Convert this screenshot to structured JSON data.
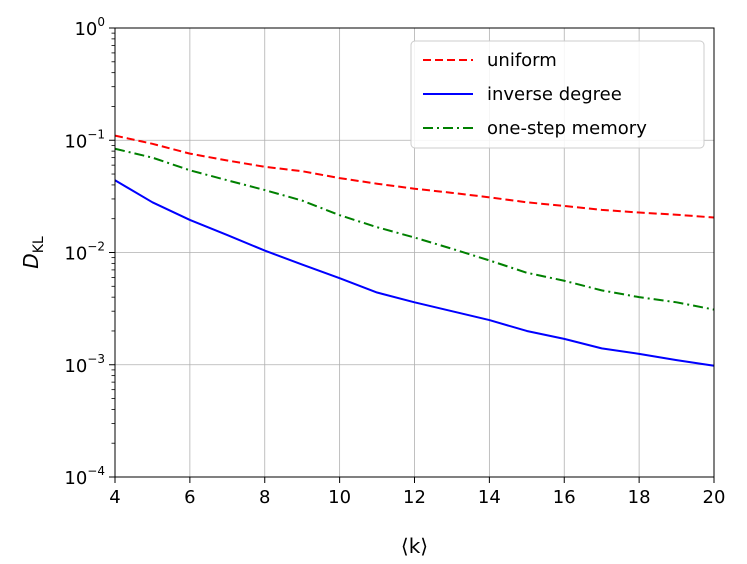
{
  "chart_data": {
    "type": "line",
    "title": "",
    "xlabel": "⟨k⟩",
    "ylabel": "D",
    "ylabel_subscript": "KL",
    "x_scale": "linear",
    "y_scale": "log",
    "xlim": [
      4,
      20
    ],
    "ylim": [
      0.0001,
      1
    ],
    "x_ticks": [
      4,
      6,
      8,
      10,
      12,
      14,
      16,
      18,
      20
    ],
    "x_tick_labels": [
      "4",
      "6",
      "8",
      "10",
      "12",
      "14",
      "16",
      "18",
      "20"
    ],
    "y_ticks": [
      0.0001,
      0.001,
      0.01,
      0.1,
      1
    ],
    "y_tick_labels": [
      {
        "base": "10",
        "exp": "−4"
      },
      {
        "base": "10",
        "exp": "−3"
      },
      {
        "base": "10",
        "exp": "−2"
      },
      {
        "base": "10",
        "exp": "−1"
      },
      {
        "base": "10",
        "exp": "0"
      }
    ],
    "grid": true,
    "legend_position": "top-right",
    "x": [
      4,
      5,
      6,
      7,
      8,
      9,
      10,
      11,
      12,
      13,
      14,
      15,
      16,
      17,
      18,
      19,
      20
    ],
    "series": [
      {
        "name": "uniform",
        "color": "#ff0000",
        "style": "dashed",
        "values": [
          0.11,
          0.093,
          0.076,
          0.066,
          0.058,
          0.053,
          0.046,
          0.041,
          0.037,
          0.034,
          0.031,
          0.028,
          0.026,
          0.024,
          0.0227,
          0.0217,
          0.0205
        ]
      },
      {
        "name": "inverse degree",
        "color": "#0000ff",
        "style": "solid",
        "values": [
          0.044,
          0.028,
          0.0195,
          0.0143,
          0.0104,
          0.0078,
          0.0059,
          0.0044,
          0.0036,
          0.003,
          0.0025,
          0.002,
          0.0017,
          0.0014,
          0.00125,
          0.0011,
          0.00098
        ]
      },
      {
        "name": "one-step memory",
        "color": "#008000",
        "style": "dashdot",
        "values": [
          0.084,
          0.07,
          0.054,
          0.044,
          0.036,
          0.029,
          0.0215,
          0.0168,
          0.0136,
          0.0108,
          0.0085,
          0.0066,
          0.0056,
          0.0046,
          0.004,
          0.0036,
          0.0031
        ]
      }
    ]
  }
}
